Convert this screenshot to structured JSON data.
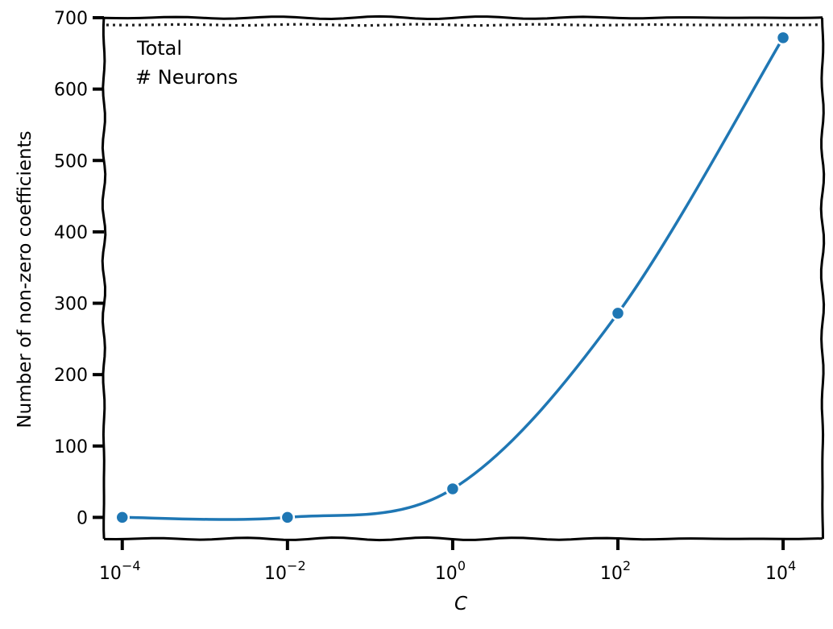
{
  "chart_data": {
    "type": "line",
    "xlabel": "C",
    "ylabel": "Number of non-zero coefficients",
    "xscale": "log",
    "xlim": [
      6e-05,
      30000
    ],
    "ylim": [
      -30,
      700
    ],
    "x_ticks": [
      {
        "value": 0.0001,
        "base": "10",
        "exp": "−4"
      },
      {
        "value": 0.01,
        "base": "10",
        "exp": "−2"
      },
      {
        "value": 1,
        "base": "10",
        "exp": "0"
      },
      {
        "value": 100,
        "base": "10",
        "exp": "2"
      },
      {
        "value": 10000,
        "base": "10",
        "exp": "4"
      }
    ],
    "y_ticks": [
      0,
      100,
      200,
      300,
      400,
      500,
      600,
      700
    ],
    "series": [
      {
        "x": [
          0.0001,
          0.01,
          1,
          100,
          10000
        ],
        "y": [
          0,
          0,
          40,
          286,
          672
        ],
        "color": "#1f77b4",
        "marker": "circle"
      }
    ],
    "reference_line": {
      "y": 690,
      "style": "dotted",
      "color": "#222222"
    },
    "annotation": [
      "Total",
      "# Neurons"
    ],
    "grid": false
  }
}
